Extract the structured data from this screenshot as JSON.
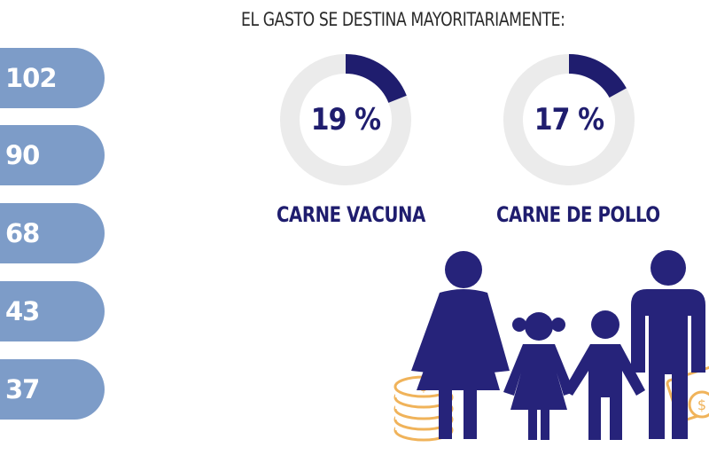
{
  "pills": [
    {
      "value": "102"
    },
    {
      "value": "90"
    },
    {
      "value": "68"
    },
    {
      "value": "43"
    },
    {
      "value": "37"
    }
  ],
  "headline": "EL GASTO SE DESTINA MAYORITARIAMENTE:",
  "donuts": [
    {
      "percent_label": "19 %",
      "percent": 19,
      "category": "CARNE VACUNA"
    },
    {
      "percent_label": "17 %",
      "percent": 17,
      "category": "CARNE DE POLLO"
    }
  ],
  "colors": {
    "pill": "#7d9cc8",
    "accent": "#1f1d6e",
    "ring_track": "#ebebeb",
    "coin": "#f0b35a",
    "headline": "#2b2b2b"
  },
  "illustration": {
    "icons": [
      "family-icon",
      "coin-stack-icon",
      "banknote-icon"
    ]
  }
}
